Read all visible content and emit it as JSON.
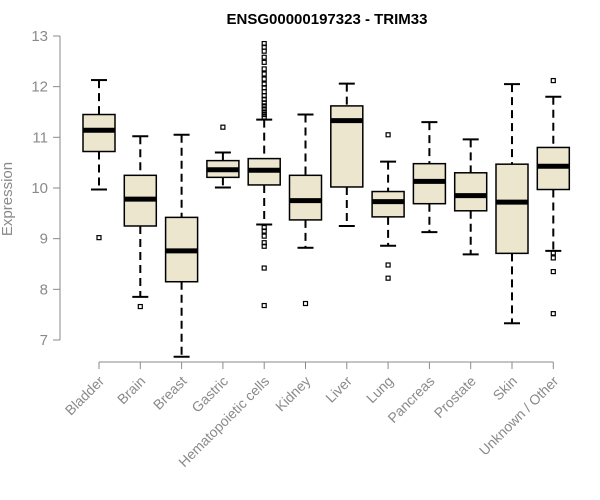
{
  "chart_data": {
    "type": "boxplot",
    "title": "ENSG00000197323 - TRIM33",
    "ylabel": "Expression",
    "xlabel": "",
    "ylim": [
      6.6,
      13.1
    ],
    "yticks": [
      7,
      8,
      9,
      10,
      11,
      12,
      13
    ],
    "ytick_labels": [
      "7",
      "8",
      "9",
      "10",
      "11",
      "12",
      "13"
    ],
    "grid": false,
    "colors": {
      "box_fill": "#ede6cf",
      "box_stroke": "#000000",
      "axis": "#8a8a8a"
    },
    "categories": [
      "Bladder",
      "Brain",
      "Breast",
      "Gastric",
      "Hematopoietic cells",
      "Kidney",
      "Liver",
      "Lung",
      "Pancreas",
      "Prostate",
      "Skin",
      "Unknown / Other"
    ],
    "boxes": [
      {
        "category": "Bladder",
        "whisker_low": 9.97,
        "q1": 10.72,
        "median": 11.14,
        "q3": 11.45,
        "whisker_high": 12.13,
        "outliers": [
          9.02
        ]
      },
      {
        "category": "Brain",
        "whisker_low": 7.85,
        "q1": 9.25,
        "median": 9.78,
        "q3": 10.25,
        "whisker_high": 11.02,
        "outliers": [
          7.66
        ]
      },
      {
        "category": "Breast",
        "whisker_low": 6.67,
        "q1": 8.15,
        "median": 8.76,
        "q3": 9.42,
        "whisker_high": 11.05,
        "outliers": []
      },
      {
        "category": "Gastric",
        "whisker_low": 10.01,
        "q1": 10.21,
        "median": 10.36,
        "q3": 10.54,
        "whisker_high": 10.7,
        "outliers": [
          11.2
        ]
      },
      {
        "category": "Hematopoietic cells",
        "whisker_low": 9.28,
        "q1": 10.06,
        "median": 10.35,
        "q3": 10.58,
        "whisker_high": 11.35,
        "outliers": [
          12.85,
          12.78,
          12.7,
          12.58,
          12.48,
          12.35,
          12.25,
          12.15,
          12.05,
          11.98,
          11.9,
          11.82,
          11.75,
          11.68,
          11.62,
          11.56,
          11.5,
          11.45,
          11.4,
          9.22,
          9.15,
          9.05,
          8.92,
          8.85,
          8.42,
          7.68
        ]
      },
      {
        "category": "Kidney",
        "whisker_low": 8.82,
        "q1": 9.37,
        "median": 9.75,
        "q3": 10.25,
        "whisker_high": 11.45,
        "outliers": [
          7.72
        ]
      },
      {
        "category": "Liver",
        "whisker_low": 9.25,
        "q1": 10.02,
        "median": 11.33,
        "q3": 11.62,
        "whisker_high": 12.06,
        "outliers": []
      },
      {
        "category": "Lung",
        "whisker_low": 8.86,
        "q1": 9.43,
        "median": 9.73,
        "q3": 9.93,
        "whisker_high": 10.52,
        "outliers": [
          11.05,
          8.48,
          8.22
        ]
      },
      {
        "category": "Pancreas",
        "whisker_low": 9.13,
        "q1": 9.69,
        "median": 10.13,
        "q3": 10.48,
        "whisker_high": 11.3,
        "outliers": []
      },
      {
        "category": "Prostate",
        "whisker_low": 8.69,
        "q1": 9.55,
        "median": 9.85,
        "q3": 10.3,
        "whisker_high": 10.96,
        "outliers": []
      },
      {
        "category": "Skin",
        "whisker_low": 7.33,
        "q1": 8.71,
        "median": 9.72,
        "q3": 10.47,
        "whisker_high": 12.05,
        "outliers": []
      },
      {
        "category": "Unknown / Other",
        "whisker_low": 8.76,
        "q1": 9.97,
        "median": 10.43,
        "q3": 10.8,
        "whisker_high": 11.8,
        "outliers": [
          12.12,
          8.72,
          8.62,
          8.35,
          7.52
        ]
      }
    ]
  }
}
